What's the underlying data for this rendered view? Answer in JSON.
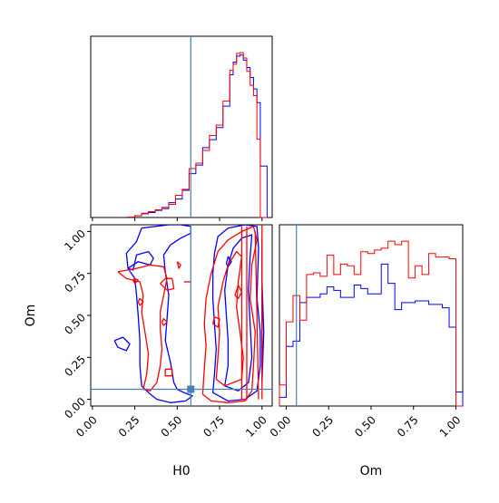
{
  "chart_data": {
    "type": "corner",
    "parameters": [
      "H0",
      "Om"
    ],
    "truth": {
      "H0": 0.58,
      "Om": 0.06
    },
    "colors": {
      "series_a": "#0000ff",
      "series_b": "#ff0000",
      "truth": "#4682b4"
    },
    "axes": {
      "H0": {
        "label": "H0",
        "range": [
          -0.01,
          1.06
        ],
        "ticks": [
          "0.00",
          "0.25",
          "0.50",
          "0.75",
          "1.00"
        ],
        "tick_values": [
          0,
          0.25,
          0.5,
          0.75,
          1.0
        ]
      },
      "Om": {
        "label": "Om",
        "range": [
          -0.04,
          1.04
        ],
        "ticks": [
          "0.00",
          "0.25",
          "0.50",
          "0.75",
          "1.00"
        ],
        "tick_values": [
          0,
          0.25,
          0.5,
          0.75,
          1.0
        ]
      }
    },
    "hist_H0": {
      "bin_edges": [
        0.21,
        0.25,
        0.29,
        0.33,
        0.37,
        0.41,
        0.45,
        0.49,
        0.53,
        0.57,
        0.61,
        0.65,
        0.69,
        0.73,
        0.77,
        0.81,
        0.83,
        0.85,
        0.87,
        0.89,
        0.91,
        0.93,
        0.95,
        0.97,
        0.99,
        1.03
      ],
      "series": [
        {
          "color_key": "series_a",
          "values": [
            0.2,
            1.1,
            2.3,
            3.0,
            4.3,
            5.4,
            9.0,
            11.2,
            16.5,
            26.6,
            31.8,
            42.4,
            47.2,
            54.6,
            67.6,
            86.6,
            94.3,
            98.0,
            98.6,
            95.5,
            91.0,
            85.0,
            78.0,
            69.7,
            31.2
          ]
        },
        {
          "color_key": "series_b",
          "values": [
            0.3,
            1.0,
            2.6,
            3.6,
            4.7,
            6.2,
            8.0,
            13.5,
            17.1,
            29.7,
            33.0,
            40.7,
            49.8,
            56.1,
            70.6,
            89.3,
            93.0,
            99.6,
            100.0,
            96.8,
            88.7,
            80.2,
            74.0,
            47.5,
            0.0
          ]
        }
      ]
    },
    "hist_Om": {
      "bin_edges": [
        -0.04,
        0.0,
        0.04,
        0.08,
        0.12,
        0.16,
        0.2,
        0.24,
        0.28,
        0.32,
        0.36,
        0.4,
        0.44,
        0.48,
        0.52,
        0.56,
        0.6,
        0.64,
        0.68,
        0.72,
        0.76,
        0.8,
        0.84,
        0.88,
        0.92,
        0.96,
        1.0,
        1.04
      ],
      "series": [
        {
          "color_key": "series_a",
          "values": [
            5,
            34,
            37,
            59,
            62,
            62,
            64,
            68,
            66,
            62,
            62,
            69,
            67,
            64,
            64,
            81,
            70,
            55,
            59,
            59,
            60,
            60,
            58,
            58,
            56,
            45,
            8
          ]
        },
        {
          "color_key": "series_b",
          "values": [
            12,
            48,
            63,
            49,
            75,
            76,
            74,
            86,
            75,
            81,
            80,
            75,
            88,
            87,
            89,
            90,
            94,
            92,
            94,
            73,
            80,
            75,
            87,
            85,
            85,
            84,
            0
          ]
        }
      ]
    },
    "contours": {
      "series": [
        {
          "color_key": "series_a",
          "paths": [
            [
              [
                0.29,
                1.02
              ],
              [
                0.37,
                1.03
              ],
              [
                0.45,
                1.04
              ],
              [
                0.52,
                1.04
              ],
              [
                0.58,
                1.03
              ],
              [
                0.58,
                0.99
              ],
              [
                0.52,
                0.96
              ],
              [
                0.46,
                0.92
              ],
              [
                0.42,
                0.86
              ],
              [
                0.43,
                0.76
              ],
              [
                0.45,
                0.62
              ],
              [
                0.44,
                0.48
              ],
              [
                0.43,
                0.35
              ],
              [
                0.46,
                0.22
              ],
              [
                0.48,
                0.1
              ],
              [
                0.5,
                0.06
              ],
              [
                0.54,
                0.04
              ],
              [
                0.59,
                0.02
              ],
              [
                0.55,
                -0.01
              ],
              [
                0.46,
                -0.02
              ],
              [
                0.38,
                0.0
              ],
              [
                0.33,
                0.04
              ],
              [
                0.29,
                0.08
              ],
              [
                0.28,
                0.2
              ],
              [
                0.28,
                0.35
              ],
              [
                0.27,
                0.5
              ],
              [
                0.26,
                0.62
              ],
              [
                0.25,
                0.72
              ],
              [
                0.21,
                0.78
              ],
              [
                0.2,
                0.87
              ],
              [
                0.26,
                0.94
              ],
              [
                0.29,
                1.02
              ]
            ],
            [
              [
                0.21,
                0.78
              ],
              [
                0.24,
                0.77
              ],
              [
                0.26,
                0.86
              ],
              [
                0.33,
                0.88
              ],
              [
                0.36,
                0.84
              ],
              [
                0.34,
                0.8
              ],
              [
                0.27,
                0.82
              ],
              [
                0.21,
                0.78
              ]
            ],
            [
              [
                0.13,
                0.35
              ],
              [
                0.18,
                0.37
              ],
              [
                0.22,
                0.33
              ],
              [
                0.2,
                0.29
              ],
              [
                0.15,
                0.31
              ],
              [
                0.13,
                0.35
              ]
            ],
            [
              [
                0.71,
                0.04
              ],
              [
                0.72,
                0.15
              ],
              [
                0.73,
                0.3
              ],
              [
                0.72,
                0.45
              ],
              [
                0.71,
                0.6
              ],
              [
                0.71,
                0.75
              ],
              [
                0.72,
                0.87
              ],
              [
                0.74,
                0.97
              ],
              [
                0.8,
                1.02
              ],
              [
                0.9,
                1.04
              ],
              [
                0.97,
                1.03
              ],
              [
                0.98,
                0.9
              ],
              [
                0.97,
                0.6
              ],
              [
                0.99,
                0.4
              ],
              [
                0.99,
                0.2
              ],
              [
                0.97,
                0.05
              ],
              [
                0.9,
                0.0
              ],
              [
                0.8,
                -0.01
              ],
              [
                0.71,
                0.04
              ]
            ],
            [
              [
                0.78,
                0.08
              ],
              [
                0.8,
                0.2
              ],
              [
                0.8,
                0.35
              ],
              [
                0.79,
                0.5
              ],
              [
                0.78,
                0.65
              ],
              [
                0.8,
                0.8
              ],
              [
                0.83,
                0.9
              ],
              [
                0.88,
                0.96
              ],
              [
                0.94,
                0.98
              ],
              [
                0.93,
                0.85
              ],
              [
                0.92,
                0.65
              ],
              [
                0.93,
                0.45
              ],
              [
                0.94,
                0.25
              ],
              [
                0.92,
                0.1
              ],
              [
                0.86,
                0.05
              ],
              [
                0.78,
                0.08
              ]
            ],
            [
              [
                0.79,
                0.81
              ],
              [
                0.8,
                0.85
              ],
              [
                0.82,
                0.82
              ],
              [
                0.8,
                0.79
              ],
              [
                0.79,
                0.81
              ]
            ],
            [
              [
                1.0,
                0.1
              ],
              [
                1.01,
                0.4
              ],
              [
                1.0,
                0.7
              ],
              [
                1.0,
                0.95
              ],
              [
                1.0,
                0.1
              ]
            ]
          ]
        },
        {
          "color_key": "series_b",
          "paths": [
            [
              [
                0.15,
                0.76
              ],
              [
                0.26,
                0.78
              ],
              [
                0.34,
                0.8
              ],
              [
                0.42,
                0.79
              ],
              [
                0.44,
                0.72
              ],
              [
                0.42,
                0.62
              ],
              [
                0.4,
                0.52
              ],
              [
                0.4,
                0.42
              ],
              [
                0.41,
                0.3
              ],
              [
                0.4,
                0.2
              ],
              [
                0.38,
                0.1
              ],
              [
                0.34,
                0.05
              ],
              [
                0.3,
                0.06
              ],
              [
                0.32,
                0.15
              ],
              [
                0.33,
                0.27
              ],
              [
                0.31,
                0.4
              ],
              [
                0.29,
                0.52
              ],
              [
                0.3,
                0.62
              ],
              [
                0.28,
                0.7
              ],
              [
                0.2,
                0.72
              ],
              [
                0.15,
                0.76
              ]
            ],
            [
              [
                0.24,
                0.71
              ],
              [
                0.25,
                0.69
              ],
              [
                0.27,
                0.71
              ],
              [
                0.25,
                0.72
              ],
              [
                0.24,
                0.71
              ]
            ],
            [
              [
                0.27,
                0.58
              ],
              [
                0.28,
                0.56
              ],
              [
                0.3,
                0.58
              ],
              [
                0.28,
                0.6
              ],
              [
                0.27,
                0.58
              ]
            ],
            [
              [
                0.4,
                0.69
              ],
              [
                0.43,
                0.72
              ],
              [
                0.47,
                0.72
              ],
              [
                0.48,
                0.66
              ],
              [
                0.44,
                0.65
              ],
              [
                0.4,
                0.69
              ]
            ],
            [
              [
                0.43,
                0.18
              ],
              [
                0.47,
                0.18
              ],
              [
                0.47,
                0.14
              ],
              [
                0.43,
                0.14
              ],
              [
                0.43,
                0.18
              ]
            ],
            [
              [
                0.41,
                0.46
              ],
              [
                0.42,
                0.44
              ],
              [
                0.44,
                0.46
              ],
              [
                0.42,
                0.48
              ],
              [
                0.41,
                0.46
              ]
            ],
            [
              [
                0.5,
                0.82
              ],
              [
                0.51,
                0.78
              ],
              [
                0.52,
                0.8
              ],
              [
                0.5,
                0.82
              ]
            ],
            [
              [
                0.54,
                0.7
              ],
              [
                0.58,
                0.7
              ]
            ],
            [
              [
                0.65,
                0.03
              ],
              [
                0.66,
                0.18
              ],
              [
                0.67,
                0.32
              ],
              [
                0.66,
                0.45
              ],
              [
                0.67,
                0.6
              ],
              [
                0.7,
                0.75
              ],
              [
                0.74,
                0.88
              ],
              [
                0.8,
                0.95
              ],
              [
                0.88,
                1.0
              ],
              [
                0.95,
                1.03
              ],
              [
                0.97,
                0.95
              ],
              [
                0.94,
                0.8
              ],
              [
                0.93,
                0.6
              ],
              [
                0.96,
                0.4
              ],
              [
                0.95,
                0.2
              ],
              [
                0.94,
                0.05
              ],
              [
                0.9,
                -0.01
              ],
              [
                0.8,
                -0.02
              ],
              [
                0.7,
                -0.01
              ],
              [
                0.65,
                0.03
              ]
            ],
            [
              [
                0.73,
                0.12
              ],
              [
                0.74,
                0.25
              ],
              [
                0.75,
                0.4
              ],
              [
                0.74,
                0.55
              ],
              [
                0.77,
                0.7
              ],
              [
                0.8,
                0.8
              ],
              [
                0.85,
                0.88
              ],
              [
                0.88,
                0.85
              ],
              [
                0.86,
                0.7
              ],
              [
                0.85,
                0.55
              ],
              [
                0.87,
                0.4
              ],
              [
                0.89,
                0.25
              ],
              [
                0.88,
                0.12
              ],
              [
                0.83,
                0.1
              ],
              [
                0.78,
                0.08
              ],
              [
                0.73,
                0.12
              ]
            ],
            [
              [
                0.71,
                0.45
              ],
              [
                0.74,
                0.43
              ],
              [
                0.75,
                0.48
              ],
              [
                0.72,
                0.49
              ],
              [
                0.71,
                0.45
              ]
            ],
            [
              [
                0.84,
                0.62
              ],
              [
                0.86,
                0.68
              ],
              [
                0.88,
                0.64
              ],
              [
                0.86,
                0.6
              ],
              [
                0.84,
                0.62
              ]
            ],
            [
              [
                0.88,
                1.03
              ],
              [
                0.88,
                0.0
              ],
              [
                0.91,
                0.0
              ],
              [
                0.91,
                1.03
              ]
            ],
            [
              [
                0.96,
                1.0
              ],
              [
                0.97,
                0.5
              ],
              [
                0.98,
                0.0
              ]
            ],
            [
              [
                1.0,
                1.04
              ],
              [
                1.0,
                0.0
              ]
            ]
          ]
        }
      ]
    }
  }
}
